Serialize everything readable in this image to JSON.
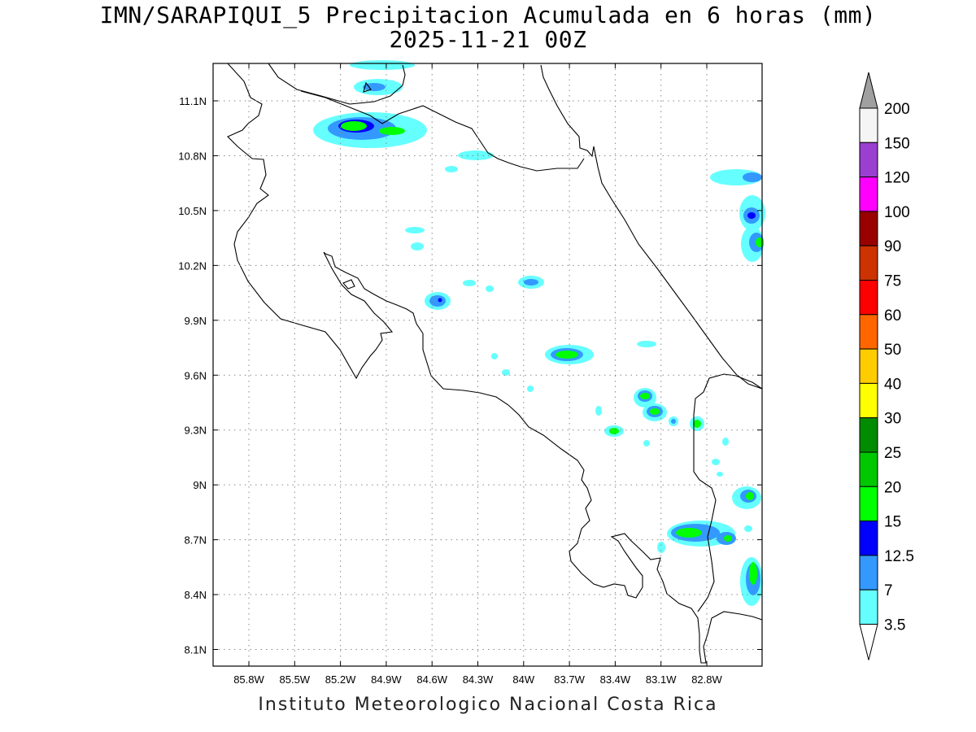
{
  "title": "IMN/SARAPIQUI_5 Precipitacion Acumulada en 6 horas (mm)",
  "subtitle": "2025-11-21 00Z",
  "footer": "Instituto Meteorologico Nacional Costa Rica",
  "map": {
    "lon_range": [
      -86.0,
      -83.0
    ],
    "lat_range": [
      8.0,
      11.3
    ],
    "lon_ticks": [
      "85.8W",
      "85.5W",
      "85.2W",
      "84.9W",
      "84.6W",
      "84.3W",
      "84W",
      "83.7W",
      "83.4W",
      "83.1W",
      "82.8W"
    ],
    "lat_ticks": [
      "11.1N",
      "10.8N",
      "10.5N",
      "10.2N",
      "9.9N",
      "9.6N",
      "9.3N",
      "9N",
      "8.7N",
      "8.4N",
      "8.1N"
    ],
    "grid": true
  },
  "colorbar": {
    "levels": [
      "200",
      "150",
      "120",
      "100",
      "90",
      "75",
      "60",
      "50",
      "40",
      "30",
      "25",
      "20",
      "15",
      "12.5",
      "7",
      "3.5"
    ],
    "colors": [
      "#a0a0a0",
      "#f5f5f5",
      "#9a3fd0",
      "#ff00ff",
      "#990000",
      "#cc3300",
      "#ff0000",
      "#ff6600",
      "#ffcc00",
      "#ffff00",
      "#008c00",
      "#00c800",
      "#00ff00",
      "#0000ff",
      "#3399ff",
      "#66ffff"
    ]
  }
}
